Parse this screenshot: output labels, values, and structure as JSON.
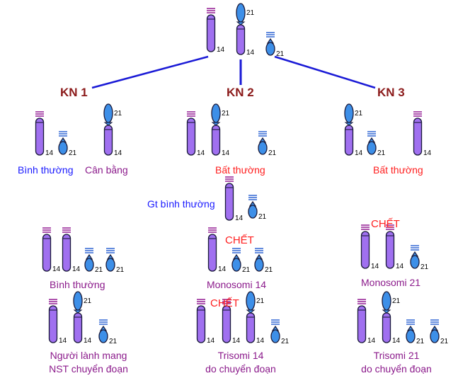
{
  "colors": {
    "chr14": "#a070f0",
    "chr21": "#3d8fe8",
    "band14": "#9a2a9a",
    "band21": "#3d6fd6",
    "connector": "#1a1ad6",
    "kn_label": "#8b1a1a",
    "normal_label": "#1a1aff",
    "abnormal_label": "#ff2020",
    "outcome_label": "#8b1a8b"
  },
  "parent": {
    "label_14": "14",
    "label_14b": "14",
    "label_21": "21",
    "label_21b": "21"
  },
  "branches": [
    {
      "title": "KN 1",
      "status": "Bình thường",
      "status2": "Cân bằng"
    },
    {
      "title": "KN 2",
      "status": "Bất thường"
    },
    {
      "title": "KN 3",
      "status": "Bất thường"
    }
  ],
  "normal_gamete": {
    "label": "Gt bình thường"
  },
  "outcomes": {
    "row1": [
      {
        "label": "Bình thường"
      },
      {
        "note": "CHẾT",
        "label": "Monosomi 14"
      },
      {
        "note": "CHẾT",
        "label": "Monosomi 21"
      }
    ],
    "row2": [
      {
        "label": "Người lành mang",
        "label2": "NST chuyển đoạn"
      },
      {
        "note": "CHẾT",
        "label": "Trisomi 14",
        "label2": "do chuyển đoạn"
      },
      {
        "label": "Trisomi 21",
        "label2": "do chuyển đoạn"
      }
    ]
  },
  "chromosome_numbers": {
    "n14": "14",
    "n21": "21"
  }
}
